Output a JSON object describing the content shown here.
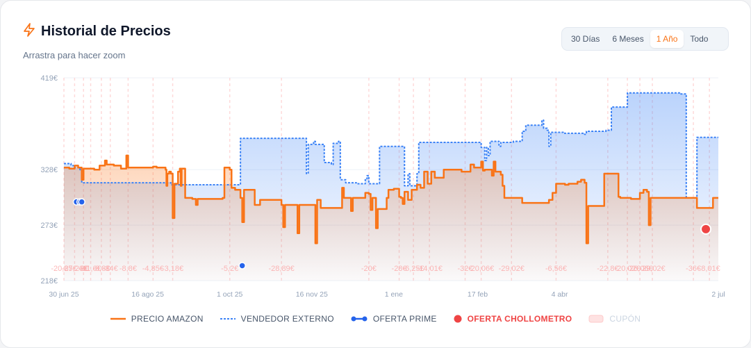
{
  "header": {
    "title": "Historial de Precios",
    "subtitle": "Arrastra para hacer zoom",
    "accent_color": "#f97316",
    "icon": "lightning-icon"
  },
  "range_selector": {
    "options": [
      "30 Días",
      "6 Meses",
      "1 Año",
      "Todo"
    ],
    "active": "1 Año"
  },
  "legend": {
    "amazon": "PRECIO AMAZON",
    "externo": "VENDEDOR EXTERNO",
    "prime": "OFERTA PRIME",
    "chollo": "OFERTA CHOLLOMETRO",
    "cupon": "CUPÓN"
  },
  "colors": {
    "amazon": "#f97316",
    "externo": "#3b82f6",
    "prime": "#2563eb",
    "chollo": "#ef4444",
    "cupon": "#fecaca"
  },
  "chart_data": {
    "type": "line",
    "y_ticks": [
      {
        "label": "419€",
        "value": 419
      },
      {
        "label": "328€",
        "value": 328
      },
      {
        "label": "273€",
        "value": 273
      },
      {
        "label": "218€",
        "value": 218
      }
    ],
    "ylim": [
      218,
      419
    ],
    "x_ticks": [
      "30 jun 25",
      "16 ago 25",
      "1 oct 25",
      "16 nov 25",
      "1 ene",
      "17 feb",
      "4 abr",
      "2 jul"
    ],
    "x_tick_days": [
      0,
      47,
      93,
      139,
      185,
      232,
      278,
      367
    ],
    "xlim": [
      0,
      367
    ],
    "coupon_labels": [
      {
        "text": "-20,85€",
        "day": 0
      },
      {
        "text": "-27,26€",
        "day": 6
      },
      {
        "text": "-8€",
        "day": 11
      },
      {
        "text": "-11,6€",
        "day": 15
      },
      {
        "text": "-8,8€",
        "day": 21
      },
      {
        "text": "-34€",
        "day": 26
      },
      {
        "text": "-8,8€",
        "day": 36
      },
      {
        "text": "-4,85€",
        "day": 50
      },
      {
        "text": "-3,18€",
        "day": 61
      },
      {
        "text": "-5,2€",
        "day": 93
      },
      {
        "text": "-28,89€",
        "day": 122
      },
      {
        "text": "-20€",
        "day": 171
      },
      {
        "text": "-28€",
        "day": 188
      },
      {
        "text": "-6,25€",
        "day": 196
      },
      {
        "text": "-14,01€",
        "day": 205
      },
      {
        "text": "-32€",
        "day": 225
      },
      {
        "text": "-20,06€",
        "day": 234
      },
      {
        "text": "-29,02€",
        "day": 251
      },
      {
        "text": "-6,56€",
        "day": 276
      },
      {
        "text": "-22,8€",
        "day": 305
      },
      {
        "text": "-20,02€",
        "day": 316
      },
      {
        "text": "-26,06€",
        "day": 323
      },
      {
        "text": "-29,02€",
        "day": 330
      },
      {
        "text": "-36€",
        "day": 353
      },
      {
        "text": "-8,01€",
        "day": 362
      }
    ],
    "series": [
      {
        "name": "PRECIO AMAZON",
        "step": true,
        "points": [
          [
            0,
            330
          ],
          [
            3,
            329
          ],
          [
            6,
            332
          ],
          [
            8,
            330
          ],
          [
            10,
            318
          ],
          [
            11,
            329
          ],
          [
            17,
            328
          ],
          [
            20,
            332
          ],
          [
            23,
            337
          ],
          [
            24,
            333
          ],
          [
            26,
            333
          ],
          [
            28,
            332
          ],
          [
            32,
            329
          ],
          [
            35,
            342
          ],
          [
            36,
            330
          ],
          [
            50,
            331
          ],
          [
            52,
            330
          ],
          [
            56,
            330
          ],
          [
            57,
            328
          ],
          [
            57.5,
            312
          ],
          [
            58,
            324
          ],
          [
            59,
            326
          ],
          [
            60,
            324
          ],
          [
            61,
            280
          ],
          [
            62,
            314
          ],
          [
            63,
            314
          ],
          [
            64,
            326
          ],
          [
            65,
            329
          ],
          [
            65.5,
            312
          ],
          [
            66,
            329
          ],
          [
            68,
            300
          ],
          [
            72,
            299
          ],
          [
            73,
            299
          ],
          [
            74,
            293
          ],
          [
            75,
            299
          ],
          [
            78,
            299
          ],
          [
            89,
            300
          ],
          [
            90,
            330
          ],
          [
            93,
            328
          ],
          [
            94,
            310
          ],
          [
            96,
            308
          ],
          [
            99,
            300
          ],
          [
            100,
            276
          ],
          [
            101,
            308
          ],
          [
            106,
            308
          ],
          [
            107,
            293
          ],
          [
            110,
            298
          ],
          [
            122,
            293
          ],
          [
            123,
            271
          ],
          [
            124,
            293
          ],
          [
            130,
            293
          ],
          [
            131,
            265
          ],
          [
            132,
            293
          ],
          [
            140,
            293
          ],
          [
            141,
            255
          ],
          [
            142,
            298
          ],
          [
            143,
            298
          ],
          [
            144,
            290
          ],
          [
            145,
            290
          ],
          [
            155,
            290
          ],
          [
            156,
            310
          ],
          [
            157,
            300
          ],
          [
            159,
            300
          ],
          [
            160,
            300
          ],
          [
            161,
            287
          ],
          [
            162,
            300
          ],
          [
            168,
            300
          ],
          [
            169,
            305
          ],
          [
            170,
            305
          ],
          [
            171,
            304
          ],
          [
            172,
            288
          ],
          [
            173,
            300
          ],
          [
            175,
            270
          ],
          [
            176,
            289
          ],
          [
            180,
            289
          ],
          [
            181,
            300
          ],
          [
            182,
            308
          ],
          [
            185,
            309
          ],
          [
            188,
            301
          ],
          [
            189,
            300
          ],
          [
            190,
            294
          ],
          [
            191,
            306
          ],
          [
            192,
            306
          ],
          [
            193,
            298
          ],
          [
            195,
            308
          ],
          [
            198,
            313
          ],
          [
            200,
            310
          ],
          [
            202,
            326
          ],
          [
            204,
            314
          ],
          [
            206,
            326
          ],
          [
            208,
            320
          ],
          [
            213,
            328
          ],
          [
            223,
            326
          ],
          [
            228,
            333
          ],
          [
            230,
            330
          ],
          [
            234,
            336
          ],
          [
            235,
            327
          ],
          [
            236,
            328
          ],
          [
            240,
            322
          ],
          [
            241,
            336
          ],
          [
            242,
            326
          ],
          [
            245,
            323
          ],
          [
            246,
            312
          ],
          [
            247,
            300
          ],
          [
            250,
            300
          ],
          [
            256,
            300
          ],
          [
            257,
            295
          ],
          [
            272,
            298
          ],
          [
            274,
            305
          ],
          [
            276,
            314
          ],
          [
            280,
            314
          ],
          [
            281,
            313
          ],
          [
            283,
            314
          ],
          [
            288,
            316
          ],
          [
            290,
            318
          ],
          [
            292,
            315
          ],
          [
            293,
            255
          ],
          [
            294,
            292
          ],
          [
            302,
            292
          ],
          [
            303,
            324
          ],
          [
            310,
            324
          ],
          [
            311,
            301
          ],
          [
            312,
            300
          ],
          [
            318,
            299
          ],
          [
            323,
            305
          ],
          [
            325,
            308
          ],
          [
            327,
            306
          ],
          [
            328,
            273
          ],
          [
            329,
            300
          ],
          [
            349,
            300
          ],
          [
            352,
            300
          ],
          [
            355,
            290
          ],
          [
            361,
            290
          ],
          [
            364,
            300
          ],
          [
            367,
            300
          ]
        ]
      },
      {
        "name": "VENDEDOR EXTERNO",
        "step": true,
        "points": [
          [
            0,
            334
          ],
          [
            4,
            332
          ],
          [
            6,
            330
          ],
          [
            9,
            328
          ],
          [
            10,
            315
          ],
          [
            12,
            315
          ],
          [
            20,
            315
          ],
          [
            30,
            315
          ],
          [
            50,
            315
          ],
          [
            60,
            313
          ],
          [
            70,
            313
          ],
          [
            85,
            313
          ],
          [
            90,
            313
          ],
          [
            96,
            313
          ],
          [
            99,
            359
          ],
          [
            101,
            359
          ],
          [
            122,
            359
          ],
          [
            135,
            359
          ],
          [
            136,
            324
          ],
          [
            137,
            353
          ],
          [
            140,
            356
          ],
          [
            141,
            353
          ],
          [
            144,
            353
          ],
          [
            146,
            335
          ],
          [
            150,
            333
          ],
          [
            151,
            354
          ],
          [
            153,
            354
          ],
          [
            154,
            356
          ],
          [
            155,
            318
          ],
          [
            158,
            315
          ],
          [
            160,
            315
          ],
          [
            164,
            314
          ],
          [
            169,
            319
          ],
          [
            170,
            322
          ],
          [
            171,
            314
          ],
          [
            176,
            314
          ],
          [
            177,
            351
          ],
          [
            185,
            351
          ],
          [
            190,
            351
          ],
          [
            191,
            312
          ],
          [
            193,
            324
          ],
          [
            194,
            312
          ],
          [
            197,
            312
          ],
          [
            198,
            324
          ],
          [
            199,
            355
          ],
          [
            205,
            355
          ],
          [
            210,
            355
          ],
          [
            212,
            355
          ],
          [
            222,
            355
          ],
          [
            233,
            355
          ],
          [
            234,
            350
          ],
          [
            236,
            337
          ],
          [
            237,
            350
          ],
          [
            238,
            342
          ],
          [
            239,
            356
          ],
          [
            243,
            356
          ],
          [
            244,
            351
          ],
          [
            245,
            355
          ],
          [
            250,
            355
          ],
          [
            252,
            356
          ],
          [
            254,
            356
          ],
          [
            256,
            356
          ],
          [
            257,
            366
          ],
          [
            259,
            372
          ],
          [
            263,
            372
          ],
          [
            268,
            377
          ],
          [
            269,
            369
          ],
          [
            271,
            367
          ],
          [
            272,
            351
          ],
          [
            273,
            365
          ],
          [
            276,
            365
          ],
          [
            280,
            364
          ],
          [
            290,
            364
          ],
          [
            292,
            363
          ],
          [
            293,
            366
          ],
          [
            295,
            366
          ],
          [
            301,
            366
          ],
          [
            304,
            367
          ],
          [
            307,
            390
          ],
          [
            309,
            390
          ],
          [
            312,
            390
          ],
          [
            316,
            404
          ],
          [
            319,
            404
          ],
          [
            330,
            404
          ],
          [
            345,
            404
          ],
          [
            346,
            403
          ],
          [
            349,
            300
          ],
          [
            354,
            300
          ],
          [
            355,
            360
          ],
          [
            367,
            360
          ]
        ]
      }
    ],
    "prime_points": [
      [
        7,
        296
      ],
      [
        9,
        296
      ],
      [
        10,
        296
      ],
      [
        100,
        217
      ]
    ],
    "chollo_points": [
      [
        360,
        269
      ]
    ]
  }
}
